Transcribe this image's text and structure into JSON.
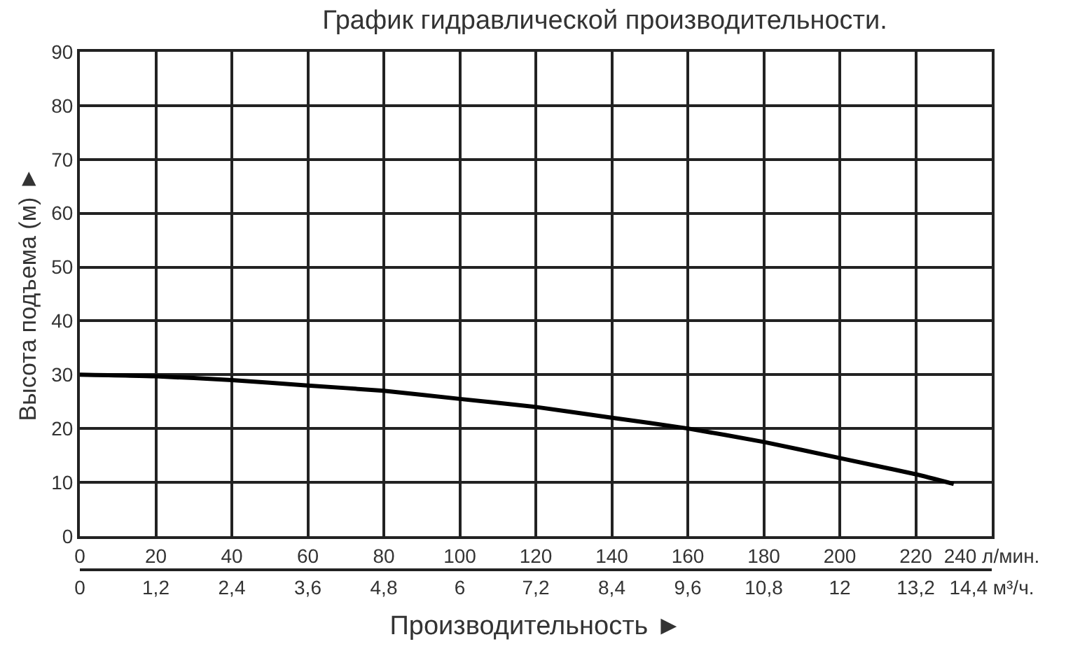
{
  "chart_data": {
    "type": "line",
    "title": "График гидравлической производительности.",
    "xlabel": "Производительность ►",
    "ylabel": "Высота подъема (м) ►",
    "x": [
      0,
      20,
      40,
      60,
      80,
      100,
      120,
      140,
      160,
      180,
      200,
      220,
      230
    ],
    "series": [
      {
        "color": "#000000",
        "values": [
          30,
          29.7,
          29,
          28,
          27,
          25.5,
          24,
          22,
          20,
          17.5,
          14.5,
          11.5,
          9.7
        ]
      }
    ],
    "xlim": [
      0,
      240
    ],
    "xticks": [
      0,
      20,
      40,
      60,
      80,
      100,
      120,
      140,
      160,
      180,
      200,
      220,
      {
        "value": 240,
        "label": "240 л/мин."
      }
    ],
    "x2lim": [
      0,
      14.4
    ],
    "x2ticks": [
      0,
      {
        "value": 1.2,
        "label": "1,2"
      },
      {
        "value": 2.4,
        "label": "2,4"
      },
      {
        "value": 3.6,
        "label": "3,6"
      },
      {
        "value": 4.8,
        "label": "4,8"
      },
      6,
      {
        "value": 7.2,
        "label": "7,2"
      },
      {
        "value": 8.4,
        "label": "8,4"
      },
      {
        "value": 9.6,
        "label": "9,6"
      },
      {
        "value": 10.8,
        "label": "10,8"
      },
      12,
      {
        "value": 13.2,
        "label": "13,2"
      },
      {
        "value": 14.4,
        "label": "14,4 м³/ч."
      }
    ],
    "ylim": [
      0,
      90
    ],
    "yticks": [
      0,
      10,
      20,
      30,
      40,
      50,
      60,
      70,
      80,
      90
    ],
    "grid": true,
    "marker": "none",
    "line_style": "solid"
  }
}
